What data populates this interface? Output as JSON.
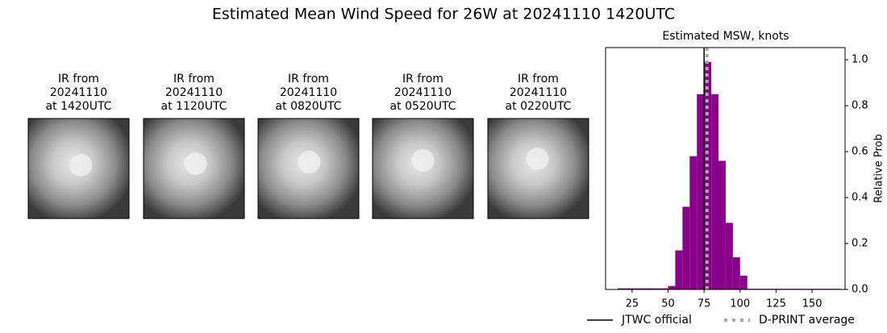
{
  "title": "Estimated Mean Wind Speed for 26W at 20241110 1420UTC",
  "images": [
    {
      "lines": [
        "IR from",
        "20241110",
        "at 1420UTC"
      ]
    },
    {
      "lines": [
        "IR from",
        "20241110",
        "at 1120UTC"
      ]
    },
    {
      "lines": [
        "IR from",
        "20241110",
        "at 0820UTC"
      ]
    },
    {
      "lines": [
        "IR from",
        "20241110",
        "at 0520UTC"
      ]
    },
    {
      "lines": [
        "IR from",
        "20241110",
        "at 0220UTC"
      ]
    }
  ],
  "chart_data": {
    "type": "histogram",
    "title": "Estimated MSW, knots",
    "y_label": "Relative Prob",
    "bins": [
      15,
      20,
      25,
      30,
      35,
      40,
      45,
      50,
      55,
      60,
      65,
      70,
      75,
      80,
      85,
      90,
      95,
      100,
      105,
      110,
      115,
      120,
      125,
      130,
      135,
      140,
      145,
      150,
      155,
      160,
      165,
      170
    ],
    "values": [
      0.005,
      0.005,
      0.005,
      0.005,
      0.005,
      0.005,
      0.005,
      0.015,
      0.17,
      0.36,
      0.58,
      0.85,
      0.99,
      0.85,
      0.56,
      0.29,
      0.14,
      0.06,
      0.003,
      0.003,
      0.003,
      0.003,
      0.003,
      0.003,
      0.003,
      0.003,
      0.003,
      0.003,
      0.003,
      0.003,
      0.003
    ],
    "color": "#8b008b",
    "xlim": [
      6.6,
      172.9
    ],
    "ylim": [
      0,
      1.053
    ],
    "xticks": [
      25,
      50,
      75,
      100,
      125,
      150
    ],
    "yticks": [
      {
        "value": 0,
        "label": "0.0"
      },
      {
        "value": 0.2,
        "label": "0.2"
      },
      {
        "value": 0.4,
        "label": "0.4"
      },
      {
        "value": 0.6,
        "label": "0.6"
      },
      {
        "value": 0.8,
        "label": "0.8"
      },
      {
        "value": 1,
        "label": "1.0"
      }
    ],
    "lines": [
      {
        "name": "JTWC official",
        "x": 75,
        "color": "#000000",
        "style": "solid"
      },
      {
        "name": "D-PRINT average",
        "x": 77,
        "color": "#aaaaaa",
        "style": "dotted"
      }
    ]
  }
}
